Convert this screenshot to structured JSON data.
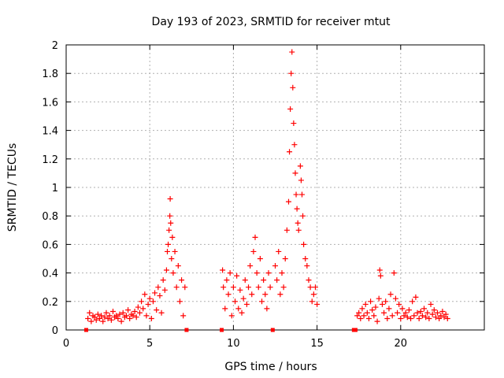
{
  "chart_data": {
    "type": "scatter",
    "title": "Day 193 of 2023, SRMTID for receiver mtut",
    "xlabel": "GPS time / hours",
    "ylabel": "SRMTID / TECUs",
    "xlim": [
      0,
      25
    ],
    "ylim": [
      0,
      2
    ],
    "xticks": [
      0,
      5,
      10,
      15,
      20
    ],
    "yticks": [
      0,
      0.2,
      0.4,
      0.6,
      0.8,
      1,
      1.2,
      1.4,
      1.6,
      1.8,
      2
    ],
    "grid": true,
    "marker": "+",
    "color": "#ff0000",
    "series": [
      {
        "name": "SRMTID",
        "points": [
          [
            1.2,
            0.0
          ],
          [
            1.3,
            0.08
          ],
          [
            1.4,
            0.12
          ],
          [
            1.5,
            0.06
          ],
          [
            1.6,
            0.1
          ],
          [
            1.7,
            0.09
          ],
          [
            1.8,
            0.07
          ],
          [
            1.9,
            0.11
          ],
          [
            2.0,
            0.08
          ],
          [
            2.1,
            0.1
          ],
          [
            2.2,
            0.06
          ],
          [
            2.3,
            0.09
          ],
          [
            2.4,
            0.12
          ],
          [
            2.5,
            0.08
          ],
          [
            2.6,
            0.1
          ],
          [
            2.7,
            0.07
          ],
          [
            2.8,
            0.13
          ],
          [
            2.9,
            0.09
          ],
          [
            3.0,
            0.1
          ],
          [
            3.1,
            0.08
          ],
          [
            3.2,
            0.11
          ],
          [
            3.3,
            0.06
          ],
          [
            3.4,
            0.12
          ],
          [
            3.5,
            0.09
          ],
          [
            3.6,
            0.1
          ],
          [
            3.7,
            0.14
          ],
          [
            3.8,
            0.08
          ],
          [
            3.9,
            0.11
          ],
          [
            4.0,
            0.1
          ],
          [
            4.1,
            0.13
          ],
          [
            4.2,
            0.09
          ],
          [
            4.3,
            0.16
          ],
          [
            4.4,
            0.12
          ],
          [
            4.5,
            0.2
          ],
          [
            4.6,
            0.15
          ],
          [
            4.7,
            0.25
          ],
          [
            4.8,
            0.1
          ],
          [
            4.9,
            0.18
          ],
          [
            5.0,
            0.22
          ],
          [
            5.1,
            0.08
          ],
          [
            5.2,
            0.2
          ],
          [
            5.3,
            0.26
          ],
          [
            5.4,
            0.14
          ],
          [
            5.5,
            0.3
          ],
          [
            5.6,
            0.24
          ],
          [
            5.7,
            0.12
          ],
          [
            5.8,
            0.35
          ],
          [
            5.9,
            0.28
          ],
          [
            6.0,
            0.42
          ],
          [
            6.05,
            0.55
          ],
          [
            6.1,
            0.6
          ],
          [
            6.15,
            0.7
          ],
          [
            6.2,
            0.8
          ],
          [
            6.22,
            0.92
          ],
          [
            6.25,
            0.75
          ],
          [
            6.3,
            0.5
          ],
          [
            6.35,
            0.65
          ],
          [
            6.4,
            0.4
          ],
          [
            6.5,
            0.55
          ],
          [
            6.6,
            0.3
          ],
          [
            6.7,
            0.45
          ],
          [
            6.8,
            0.2
          ],
          [
            6.9,
            0.35
          ],
          [
            7.0,
            0.1
          ],
          [
            7.1,
            0.3
          ],
          [
            7.2,
            0.0
          ],
          [
            9.3,
            0.0
          ],
          [
            9.35,
            0.42
          ],
          [
            9.4,
            0.3
          ],
          [
            9.5,
            0.15
          ],
          [
            9.6,
            0.35
          ],
          [
            9.7,
            0.25
          ],
          [
            9.8,
            0.4
          ],
          [
            9.9,
            0.1
          ],
          [
            10.0,
            0.3
          ],
          [
            10.1,
            0.2
          ],
          [
            10.2,
            0.38
          ],
          [
            10.3,
            0.15
          ],
          [
            10.4,
            0.28
          ],
          [
            10.5,
            0.12
          ],
          [
            10.6,
            0.22
          ],
          [
            10.7,
            0.35
          ],
          [
            10.8,
            0.18
          ],
          [
            10.9,
            0.3
          ],
          [
            11.0,
            0.45
          ],
          [
            11.1,
            0.25
          ],
          [
            11.2,
            0.55
          ],
          [
            11.3,
            0.65
          ],
          [
            11.4,
            0.4
          ],
          [
            11.5,
            0.3
          ],
          [
            11.6,
            0.5
          ],
          [
            11.7,
            0.2
          ],
          [
            11.8,
            0.35
          ],
          [
            11.9,
            0.25
          ],
          [
            12.0,
            0.15
          ],
          [
            12.1,
            0.4
          ],
          [
            12.2,
            0.3
          ],
          [
            12.35,
            0.0
          ],
          [
            12.5,
            0.45
          ],
          [
            12.6,
            0.35
          ],
          [
            12.7,
            0.55
          ],
          [
            12.8,
            0.25
          ],
          [
            12.9,
            0.4
          ],
          [
            13.0,
            0.3
          ],
          [
            13.1,
            0.5
          ],
          [
            13.2,
            0.7
          ],
          [
            13.3,
            0.9
          ],
          [
            13.35,
            1.25
          ],
          [
            13.4,
            1.55
          ],
          [
            13.45,
            1.8
          ],
          [
            13.5,
            1.95
          ],
          [
            13.55,
            1.7
          ],
          [
            13.6,
            1.45
          ],
          [
            13.65,
            1.3
          ],
          [
            13.7,
            1.1
          ],
          [
            13.75,
            0.95
          ],
          [
            13.8,
            0.85
          ],
          [
            13.85,
            0.75
          ],
          [
            13.9,
            0.7
          ],
          [
            14.0,
            1.15
          ],
          [
            14.05,
            1.05
          ],
          [
            14.1,
            0.95
          ],
          [
            14.15,
            0.8
          ],
          [
            14.2,
            0.6
          ],
          [
            14.3,
            0.5
          ],
          [
            14.4,
            0.45
          ],
          [
            14.5,
            0.35
          ],
          [
            14.6,
            0.3
          ],
          [
            14.7,
            0.2
          ],
          [
            14.8,
            0.25
          ],
          [
            14.9,
            0.3
          ],
          [
            15.0,
            0.18
          ],
          [
            17.2,
            0.0
          ],
          [
            17.3,
            0.0
          ],
          [
            17.4,
            0.1
          ],
          [
            17.5,
            0.12
          ],
          [
            17.6,
            0.08
          ],
          [
            17.7,
            0.15
          ],
          [
            17.8,
            0.1
          ],
          [
            17.9,
            0.18
          ],
          [
            18.0,
            0.12
          ],
          [
            18.1,
            0.08
          ],
          [
            18.2,
            0.2
          ],
          [
            18.3,
            0.14
          ],
          [
            18.4,
            0.1
          ],
          [
            18.5,
            0.16
          ],
          [
            18.6,
            0.06
          ],
          [
            18.7,
            0.22
          ],
          [
            18.75,
            0.42
          ],
          [
            18.8,
            0.38
          ],
          [
            18.9,
            0.18
          ],
          [
            19.0,
            0.12
          ],
          [
            19.1,
            0.2
          ],
          [
            19.2,
            0.08
          ],
          [
            19.3,
            0.15
          ],
          [
            19.4,
            0.25
          ],
          [
            19.5,
            0.1
          ],
          [
            19.6,
            0.4
          ],
          [
            19.7,
            0.22
          ],
          [
            19.8,
            0.12
          ],
          [
            19.9,
            0.18
          ],
          [
            20.0,
            0.08
          ],
          [
            20.1,
            0.15
          ],
          [
            20.2,
            0.1
          ],
          [
            20.3,
            0.12
          ],
          [
            20.4,
            0.09
          ],
          [
            20.5,
            0.14
          ],
          [
            20.6,
            0.08
          ],
          [
            20.7,
            0.2
          ],
          [
            20.8,
            0.1
          ],
          [
            20.9,
            0.23
          ],
          [
            21.0,
            0.12
          ],
          [
            21.1,
            0.08
          ],
          [
            21.2,
            0.13
          ],
          [
            21.3,
            0.1
          ],
          [
            21.4,
            0.15
          ],
          [
            21.5,
            0.09
          ],
          [
            21.6,
            0.12
          ],
          [
            21.7,
            0.08
          ],
          [
            21.8,
            0.18
          ],
          [
            21.9,
            0.11
          ],
          [
            22.0,
            0.14
          ],
          [
            22.1,
            0.09
          ],
          [
            22.2,
            0.12
          ],
          [
            22.3,
            0.08
          ],
          [
            22.4,
            0.1
          ],
          [
            22.5,
            0.13
          ],
          [
            22.6,
            0.09
          ],
          [
            22.7,
            0.11
          ],
          [
            22.8,
            0.08
          ]
        ]
      }
    ]
  }
}
